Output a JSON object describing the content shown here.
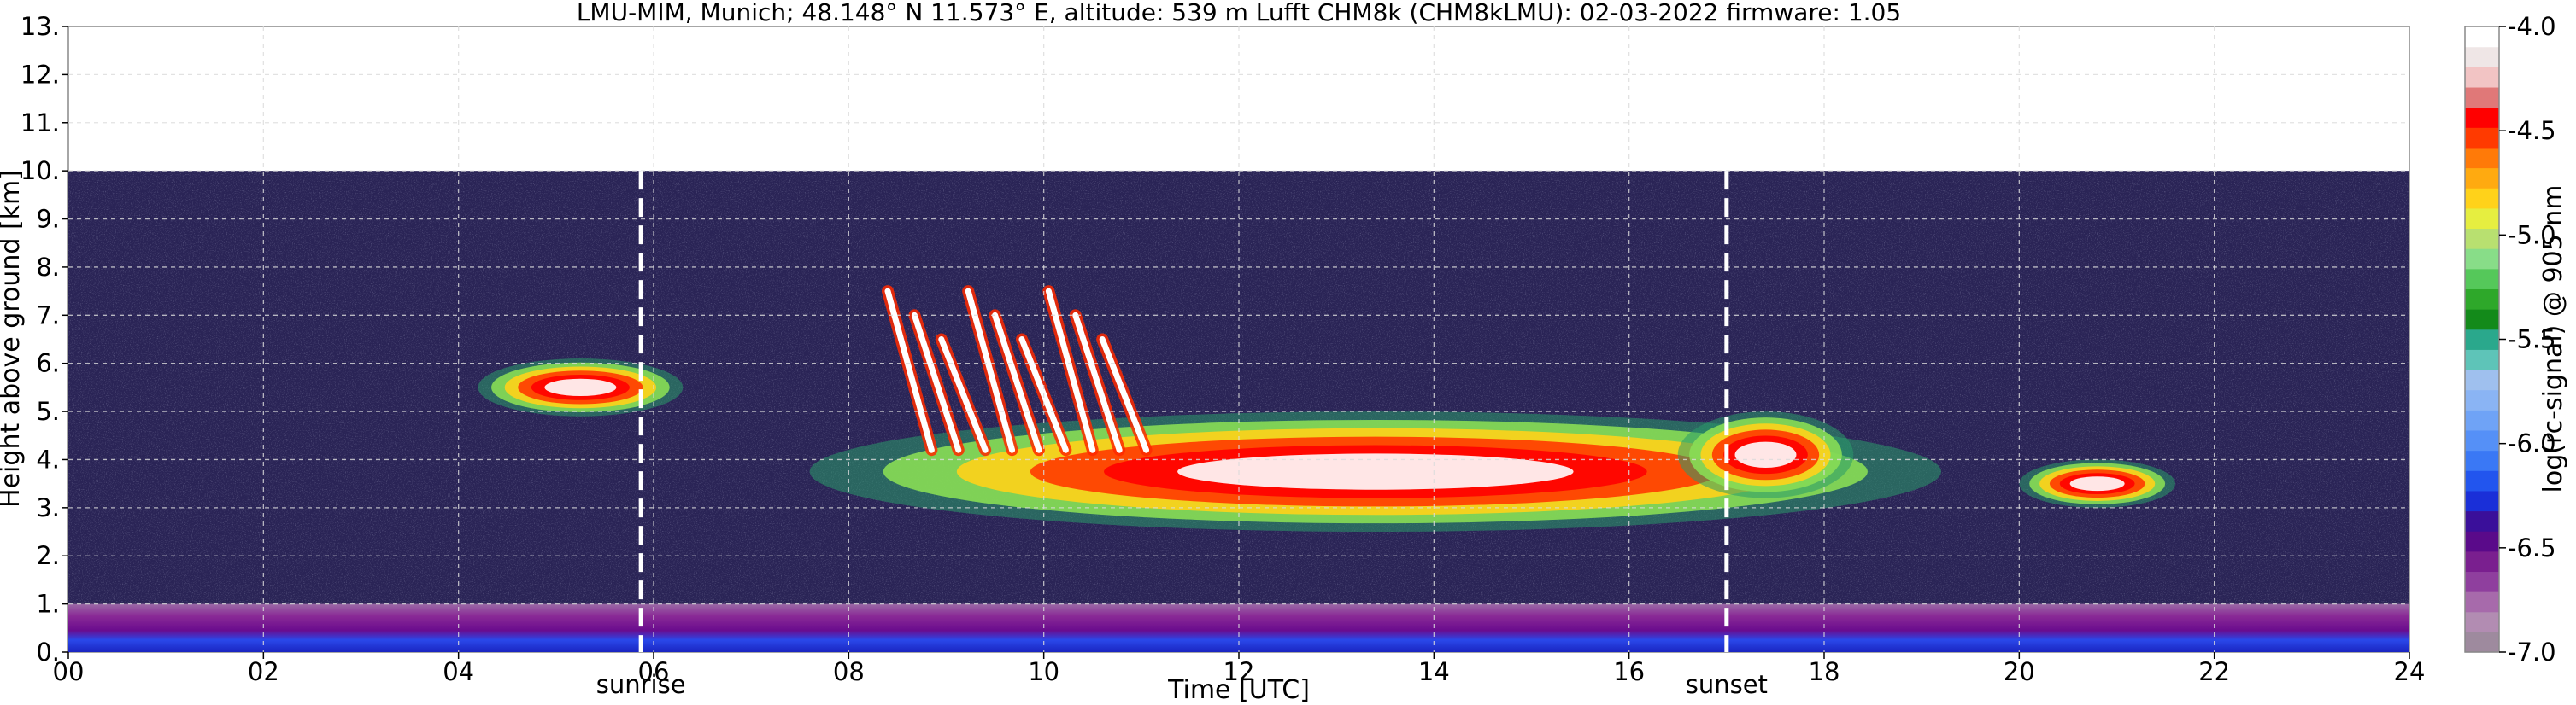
{
  "chart_data": {
    "type": "heatmap",
    "title": "LMU-MIM, Munich; 48.148° N 11.573° E, altitude: 539 m    Lufft CHM8k (CHM8kLMU): 02-03-2022    firmware: 1.05",
    "xlabel": "Time [UTC]",
    "ylabel": "Height above ground [km]",
    "xlim": [
      0,
      24
    ],
    "ylim": [
      0,
      13
    ],
    "x_ticks": [
      "00",
      "02",
      "04",
      "06",
      "08",
      "10",
      "12",
      "14",
      "16",
      "18",
      "20",
      "22",
      "24"
    ],
    "y_ticks": [
      "0.",
      "1.",
      "2.",
      "3.",
      "4.",
      "5.",
      "6.",
      "7.",
      "8.",
      "9.",
      "10.",
      "11.",
      "12.",
      "13."
    ],
    "grid": true,
    "data_top_km": 10,
    "markers": [
      {
        "label": "sunrise",
        "time_utc": 5.87
      },
      {
        "label": "sunset",
        "time_utc": 17.0
      }
    ],
    "colorbar": {
      "label": "log(rc-signal) @ 905 nm",
      "range": [
        -7.0,
        -4.0
      ],
      "ticks": [
        "-4.0",
        "-4.5",
        "-5.0",
        "-5.5",
        "-6.0",
        "-6.5",
        "-7.0"
      ],
      "colors": [
        "#9e8a9e",
        "#b28cb2",
        "#a76aab",
        "#8f3f9e",
        "#7a1f8f",
        "#5a0a8a",
        "#3a0f9a",
        "#1a2fd8",
        "#2255ee",
        "#3a78f5",
        "#5590f7",
        "#6fa3f6",
        "#8ab4f4",
        "#9fc0ee",
        "#5ec4b8",
        "#2aa88c",
        "#138a1a",
        "#2ea82a",
        "#55c85a",
        "#88dd88",
        "#b8e070",
        "#e6ee40",
        "#ffd21a",
        "#ffaa10",
        "#ff7a08",
        "#ff3a00",
        "#ff0000",
        "#e07878",
        "#f2c4c4",
        "#efe6e6",
        "#ffffff"
      ]
    },
    "series": [
      {
        "kind": "boundary_layer",
        "top_km": 1.0,
        "time_range": [
          0,
          24
        ]
      },
      {
        "kind": "cloud_layer",
        "time_range": [
          4.2,
          6.3
        ],
        "base_km": 4.9,
        "top_km": 6.1
      },
      {
        "kind": "cloud_layer",
        "time_range": [
          7.6,
          19.2
        ],
        "base_km": 2.5,
        "top_km": 5.0
      },
      {
        "kind": "fall_streaks",
        "time_range": [
          8.4,
          10.6
        ],
        "top_km": 7.5
      },
      {
        "kind": "cloud_layer",
        "time_range": [
          16.5,
          18.3
        ],
        "base_km": 3.2,
        "top_km": 5.0
      },
      {
        "kind": "cloud_layer",
        "time_range": [
          20.0,
          21.6
        ],
        "base_km": 3.0,
        "top_km": 4.0
      }
    ]
  }
}
